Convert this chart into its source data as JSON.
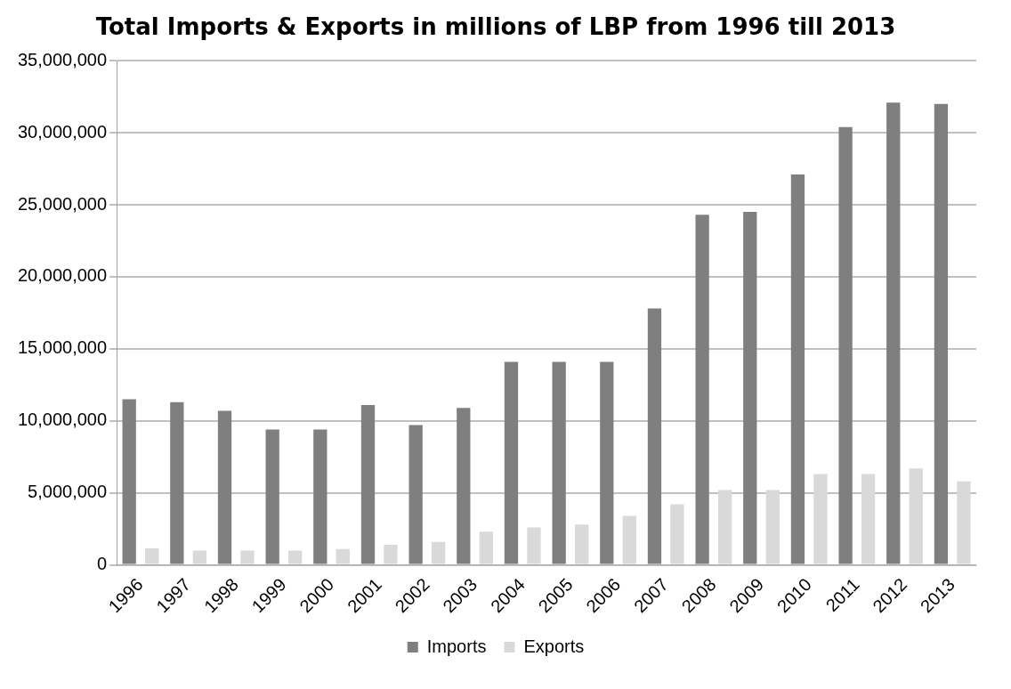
{
  "chart_data": {
    "type": "bar",
    "title": "Total Imports & Exports in millions of LBP from 1996 till 2013",
    "categories": [
      "1996",
      "1997",
      "1998",
      "1999",
      "2000",
      "2001",
      "2002",
      "2003",
      "2004",
      "2005",
      "2006",
      "2007",
      "2008",
      "2009",
      "2010",
      "2011",
      "2012",
      "2013"
    ],
    "series": [
      {
        "name": "Imports",
        "color": "#7f7f7f",
        "values": [
          11500000,
          11300000,
          10700000,
          9400000,
          9400000,
          11100000,
          9700000,
          10900000,
          14100000,
          14100000,
          14100000,
          17800000,
          24300000,
          24500000,
          27100000,
          30400000,
          32100000,
          32000000
        ]
      },
      {
        "name": "Exports",
        "color": "#d9d9d9",
        "values": [
          1150000,
          1000000,
          1000000,
          1000000,
          1100000,
          1400000,
          1600000,
          2300000,
          2600000,
          2800000,
          3400000,
          4200000,
          5200000,
          5200000,
          6300000,
          6300000,
          6700000,
          5800000
        ]
      }
    ],
    "ylim": [
      0,
      35000000
    ],
    "yticks": [
      0,
      {
        "value": 5000000,
        "label": "5,000,000"
      },
      {
        "value": 10000000,
        "label": "10,000,000"
      },
      {
        "value": 15000000,
        "label": "15,000,000"
      },
      {
        "value": 20000000,
        "label": "20,000,000"
      },
      {
        "value": 25000000,
        "label": "25,000,000"
      },
      {
        "value": 30000000,
        "label": "30,000,000"
      },
      {
        "value": 35000000,
        "label": "35,000,000"
      }
    ],
    "grid": "y",
    "legend": "bottom"
  }
}
